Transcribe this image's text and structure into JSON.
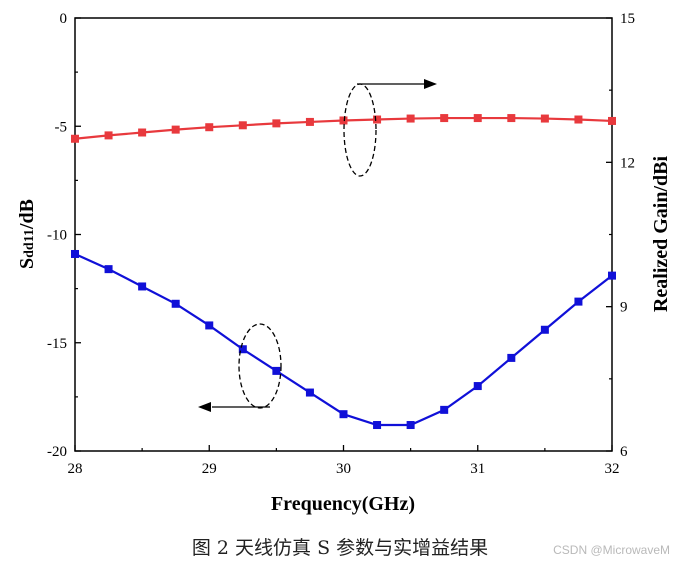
{
  "chart_data": {
    "type": "line",
    "x": [
      28,
      28.25,
      28.5,
      28.75,
      29,
      29.25,
      29.5,
      29.75,
      30,
      30.25,
      30.5,
      30.75,
      31,
      31.25,
      31.5,
      31.75,
      32
    ],
    "xlabel": "Frequency(GHz)",
    "xlim": [
      28,
      32
    ],
    "xticks": [
      "28",
      "29",
      "30",
      "31",
      "32"
    ],
    "y_left": {
      "label_main": "S",
      "label_sub": "dd11",
      "label_tail": "/dB",
      "lim": [
        -20,
        0
      ],
      "ticks": [
        "0",
        "-5",
        "-10",
        "-15",
        "-20"
      ]
    },
    "y_right": {
      "label": "Realized Gain/dBi",
      "lim": [
        6,
        15
      ],
      "ticks": [
        "15",
        "12",
        "9",
        "6"
      ]
    },
    "series": [
      {
        "axis": "left",
        "color": "#1010d8",
        "marker": "square",
        "values": [
          -10.9,
          -11.6,
          -12.4,
          -13.2,
          -14.2,
          -15.3,
          -16.3,
          -17.3,
          -18.3,
          -18.8,
          -18.8,
          -18.1,
          -17.0,
          -15.7,
          -14.4,
          -13.1,
          -11.9
        ]
      },
      {
        "axis": "right",
        "color": "#e8393d",
        "marker": "square",
        "values": [
          12.49,
          12.56,
          12.62,
          12.68,
          12.73,
          12.77,
          12.81,
          12.84,
          12.87,
          12.89,
          12.91,
          12.92,
          12.92,
          12.92,
          12.91,
          12.89,
          12.86
        ]
      }
    ],
    "grid": false
  },
  "caption": "图 2  天线仿真 S 参数与实增益结果",
  "watermark": "CSDN @MicrowaveM"
}
